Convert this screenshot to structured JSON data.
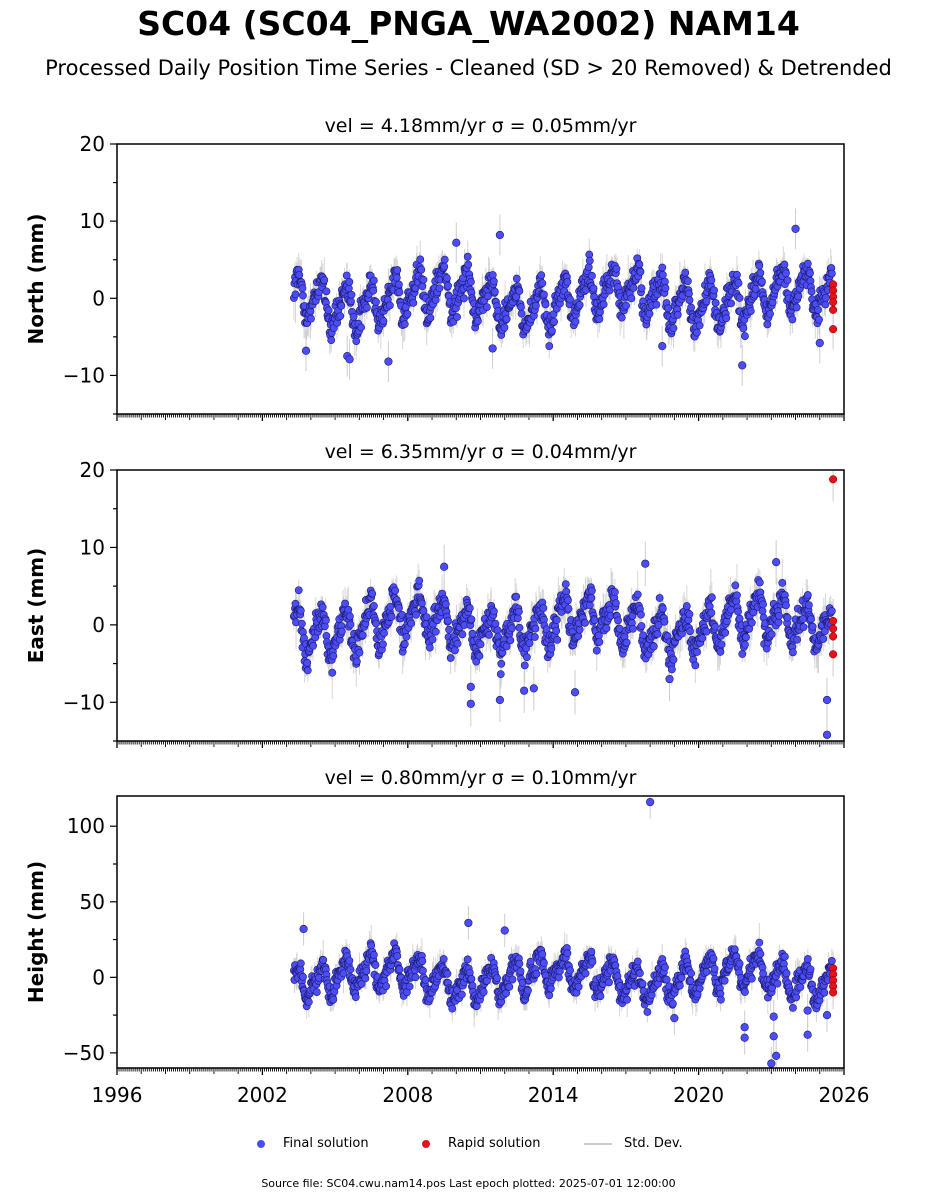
{
  "title": "SC04 (SC04_PNGA_WA2002) NAM14",
  "subtitle": "Processed Daily Position Time Series - Cleaned (SD > 20 Removed) & Detrended",
  "legend": {
    "final": "Final solution",
    "rapid": "Rapid solution",
    "std": "Std. Dev."
  },
  "source_note": "Source file: SC04.cwu.nam14.pos  Last epoch plotted: 2025-07-01 12:00:00",
  "colors": {
    "final": "#4d4df7",
    "final_edge": "#1a1a6a",
    "rapid": "#e8101a",
    "std": "#cccccc",
    "axis": "#000000"
  },
  "chart_data": [
    {
      "type": "scatter",
      "panel": "north",
      "title": "vel = 4.18mm/yr   σ = 0.05mm/yr",
      "ylabel": "North (mm)",
      "xlim": [
        1996,
        2026
      ],
      "ylim": [
        -15,
        20
      ],
      "yticks": [
        -10,
        0,
        10,
        20
      ],
      "xticks": [
        1996,
        2002,
        2008,
        2014,
        2020,
        2026
      ],
      "data_start": 2003.3,
      "data_end": 2025.5,
      "amplitude": 2.5,
      "noise": 1.2,
      "outliers": [
        {
          "x": 2003.8,
          "y": -6.8
        },
        {
          "x": 2005.5,
          "y": -7.5
        },
        {
          "x": 2005.6,
          "y": -7.9
        },
        {
          "x": 2007.2,
          "y": -8.2
        },
        {
          "x": 2011.5,
          "y": -6.5
        },
        {
          "x": 2011.8,
          "y": 8.2
        },
        {
          "x": 2021.8,
          "y": -8.7
        },
        {
          "x": 2024.0,
          "y": 9.0
        },
        {
          "x": 2025.0,
          "y": -5.8
        },
        {
          "x": 2010.0,
          "y": 7.2
        },
        {
          "x": 2018.5,
          "y": -6.2
        }
      ],
      "rapid": [
        {
          "x": 2025.55,
          "y": 1.8
        },
        {
          "x": 2025.55,
          "y": 1.0
        },
        {
          "x": 2025.55,
          "y": 0.2
        },
        {
          "x": 2025.55,
          "y": -0.5
        },
        {
          "x": 2025.55,
          "y": -1.5
        },
        {
          "x": 2025.55,
          "y": -4.0
        }
      ]
    },
    {
      "type": "scatter",
      "panel": "east",
      "title": "vel = 6.35mm/yr   σ = 0.04mm/yr",
      "ylabel": "East (mm)",
      "xlim": [
        1996,
        2026
      ],
      "ylim": [
        -15,
        20
      ],
      "yticks": [
        -10,
        0,
        10,
        20
      ],
      "xticks": [
        1996,
        2002,
        2008,
        2014,
        2020,
        2026
      ],
      "data_start": 2003.3,
      "data_end": 2025.5,
      "amplitude": 2.5,
      "noise": 1.3,
      "outliers": [
        {
          "x": 2009.5,
          "y": 7.5
        },
        {
          "x": 2010.6,
          "y": -8.0
        },
        {
          "x": 2010.6,
          "y": -10.2
        },
        {
          "x": 2011.8,
          "y": -9.7
        },
        {
          "x": 2012.8,
          "y": -8.5
        },
        {
          "x": 2013.2,
          "y": -8.2
        },
        {
          "x": 2014.9,
          "y": -8.7
        },
        {
          "x": 2017.8,
          "y": 7.9
        },
        {
          "x": 2023.2,
          "y": 8.1
        },
        {
          "x": 2025.3,
          "y": -9.7
        },
        {
          "x": 2025.3,
          "y": -14.2
        },
        {
          "x": 2018.8,
          "y": -7.0
        }
      ],
      "rapid": [
        {
          "x": 2025.55,
          "y": 18.8
        },
        {
          "x": 2025.55,
          "y": 0.5
        },
        {
          "x": 2025.55,
          "y": -0.5
        },
        {
          "x": 2025.55,
          "y": -1.5
        },
        {
          "x": 2025.55,
          "y": -3.8
        }
      ]
    },
    {
      "type": "scatter",
      "panel": "height",
      "title": "vel = 0.80mm/yr   σ = 0.10mm/yr",
      "ylabel": "Height (mm)",
      "xlim": [
        1996,
        2026
      ],
      "ylim": [
        -60,
        120
      ],
      "yticks": [
        -50,
        0,
        50,
        100
      ],
      "xticks": [
        1996,
        2002,
        2008,
        2014,
        2020,
        2026
      ],
      "data_start": 2003.3,
      "data_end": 2025.5,
      "amplitude": 10,
      "noise": 5,
      "outliers": [
        {
          "x": 2018.0,
          "y": 116
        },
        {
          "x": 2010.5,
          "y": 36
        },
        {
          "x": 2003.7,
          "y": 32
        },
        {
          "x": 2012.0,
          "y": 31
        },
        {
          "x": 2019.0,
          "y": -27
        },
        {
          "x": 2021.9,
          "y": -33
        },
        {
          "x": 2021.9,
          "y": -40
        },
        {
          "x": 2023.1,
          "y": -26
        },
        {
          "x": 2023.1,
          "y": -39
        },
        {
          "x": 2023.2,
          "y": -52
        },
        {
          "x": 2023.0,
          "y": -57
        },
        {
          "x": 2024.5,
          "y": -22
        },
        {
          "x": 2024.5,
          "y": -38
        },
        {
          "x": 2025.3,
          "y": -25
        }
      ],
      "rapid": [
        {
          "x": 2025.55,
          "y": 6
        },
        {
          "x": 2025.55,
          "y": 2
        },
        {
          "x": 2025.55,
          "y": -2
        },
        {
          "x": 2025.55,
          "y": -6
        },
        {
          "x": 2025.55,
          "y": -10
        }
      ]
    }
  ]
}
